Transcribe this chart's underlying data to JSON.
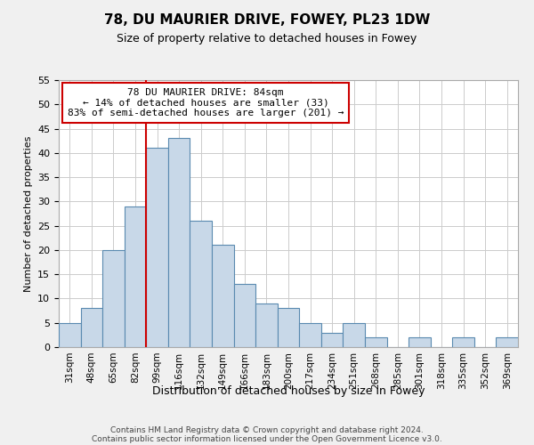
{
  "title": "78, DU MAURIER DRIVE, FOWEY, PL23 1DW",
  "subtitle": "Size of property relative to detached houses in Fowey",
  "xlabel": "Distribution of detached houses by size in Fowey",
  "ylabel": "Number of detached properties",
  "bar_labels": [
    "31sqm",
    "48sqm",
    "65sqm",
    "82sqm",
    "99sqm",
    "116sqm",
    "132sqm",
    "149sqm",
    "166sqm",
    "183sqm",
    "200sqm",
    "217sqm",
    "234sqm",
    "251sqm",
    "268sqm",
    "285sqm",
    "301sqm",
    "318sqm",
    "335sqm",
    "352sqm",
    "369sqm"
  ],
  "bar_values": [
    5,
    8,
    20,
    29,
    41,
    43,
    26,
    21,
    13,
    9,
    8,
    5,
    3,
    5,
    2,
    0,
    2,
    0,
    2,
    0,
    2
  ],
  "bar_color": "#c8d8e8",
  "bar_edge_color": "#5a8ab0",
  "vline_index": 3,
  "vline_color": "#cc0000",
  "annotation_line1": "78 DU MAURIER DRIVE: 84sqm",
  "annotation_line2": "← 14% of detached houses are smaller (33)",
  "annotation_line3": "83% of semi-detached houses are larger (201) →",
  "annotation_box_edge_color": "#cc0000",
  "ylim": [
    0,
    55
  ],
  "yticks": [
    0,
    5,
    10,
    15,
    20,
    25,
    30,
    35,
    40,
    45,
    50,
    55
  ],
  "footer_line1": "Contains HM Land Registry data © Crown copyright and database right 2024.",
  "footer_line2": "Contains public sector information licensed under the Open Government Licence v3.0.",
  "bg_color": "#f0f0f0",
  "plot_bg_color": "#ffffff",
  "grid_color": "#cccccc"
}
